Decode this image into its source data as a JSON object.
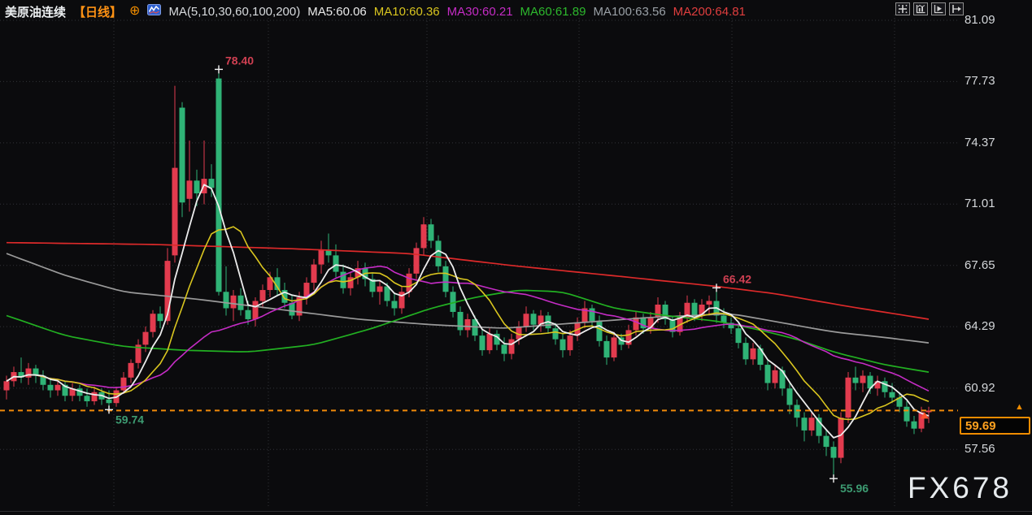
{
  "header": {
    "symbol": "美原油连续",
    "period": "【日线】",
    "plus_icon": "⊕",
    "ma_settings_label": "MA(5,10,30,60,100,200)",
    "ma_values": [
      {
        "label": "MA5:60.06",
        "color": "#ebebeb"
      },
      {
        "label": "MA10:60.36",
        "color": "#d9c51f"
      },
      {
        "label": "MA30:60.21",
        "color": "#c52cc5"
      },
      {
        "label": "MA60:61.89",
        "color": "#2db82d"
      },
      {
        "label": "MA100:63.56",
        "color": "#9aa0a6"
      },
      {
        "label": "MA200:64.81",
        "color": "#e03e3e"
      }
    ]
  },
  "toolbar": {
    "icons": [
      "move-crosshair",
      "fit-chart",
      "play-forward",
      "pan-right"
    ]
  },
  "price_box": {
    "value": "59.69",
    "arrow": "▲"
  },
  "watermark": "FX678",
  "chart_data": {
    "type": "candlestick",
    "title": "美原油连续 日线 (US Crude Oil Continuous, Daily)",
    "y_axis": {
      "side": "right",
      "ticks": [
        81.09,
        77.73,
        74.37,
        71.01,
        67.65,
        64.29,
        60.92,
        57.56
      ]
    },
    "current_price": 59.69,
    "up_color": "#e23b4e",
    "down_color": "#2fb376",
    "grid_color": "#323338",
    "dashed_line_color": "#f0890a",
    "annotations": [
      {
        "type": "high",
        "index": 29,
        "price": 78.4,
        "label": "78.40",
        "color": "#d04052"
      },
      {
        "type": "low",
        "index": 14,
        "price": 59.74,
        "label": "59.74",
        "color": "#3d9c72"
      },
      {
        "type": "high",
        "index": 97,
        "price": 66.42,
        "label": "66.42",
        "color": "#d04052"
      },
      {
        "type": "low",
        "index": 113,
        "price": 55.96,
        "label": "55.96",
        "color": "#3d9c72"
      }
    ],
    "ma_computed": [
      {
        "name": "MA5",
        "period": 5,
        "color": "#ececec"
      },
      {
        "name": "MA10",
        "period": 10,
        "color": "#d9c51f"
      },
      {
        "name": "MA30",
        "period": 30,
        "color": "#c52cc5"
      }
    ],
    "ma_paths": [
      {
        "name": "MA60",
        "color": "#22b022",
        "points": [
          [
            0,
            64.9
          ],
          [
            8,
            63.8
          ],
          [
            16,
            63.2
          ],
          [
            24,
            63.0
          ],
          [
            33,
            62.9
          ],
          [
            42,
            63.3
          ],
          [
            50,
            64.2
          ],
          [
            58,
            65.3
          ],
          [
            64,
            65.9
          ],
          [
            70,
            66.3
          ],
          [
            76,
            66.2
          ],
          [
            83,
            65.3
          ],
          [
            90,
            64.9
          ],
          [
            97,
            64.6
          ],
          [
            103,
            64.1
          ],
          [
            108,
            63.6
          ],
          [
            113,
            62.9
          ],
          [
            120,
            62.2
          ],
          [
            126,
            61.8
          ]
        ]
      },
      {
        "name": "MA100",
        "color": "#9a9a9a",
        "points": [
          [
            0,
            68.3
          ],
          [
            8,
            67.1
          ],
          [
            16,
            66.2
          ],
          [
            26,
            65.8
          ],
          [
            36,
            65.3
          ],
          [
            48,
            64.7
          ],
          [
            58,
            64.4
          ],
          [
            68,
            64.2
          ],
          [
            78,
            64.5
          ],
          [
            88,
            64.8
          ],
          [
            99,
            65.0
          ],
          [
            106,
            64.5
          ],
          [
            113,
            64.0
          ],
          [
            120,
            63.7
          ],
          [
            126,
            63.4
          ]
        ]
      },
      {
        "name": "MA200",
        "color": "#dd2a2a",
        "points": [
          [
            0,
            68.9
          ],
          [
            20,
            68.8
          ],
          [
            40,
            68.55
          ],
          [
            55,
            68.3
          ],
          [
            70,
            67.6
          ],
          [
            85,
            67.0
          ],
          [
            97,
            66.5
          ],
          [
            105,
            66.1
          ],
          [
            115,
            65.4
          ],
          [
            126,
            64.7
          ]
        ]
      }
    ],
    "candles": [
      [
        60.8,
        61.6,
        60.3,
        61.3
      ],
      [
        61.3,
        62.1,
        61.0,
        61.8
      ],
      [
        61.8,
        62.6,
        61.2,
        61.5
      ],
      [
        61.5,
        62.3,
        61.1,
        62.0
      ],
      [
        62.0,
        62.2,
        61.2,
        61.6
      ],
      [
        61.6,
        61.9,
        60.8,
        61.1
      ],
      [
        61.1,
        61.5,
        60.4,
        60.8
      ],
      [
        60.8,
        61.4,
        60.5,
        61.1
      ],
      [
        61.1,
        61.3,
        60.2,
        60.5
      ],
      [
        60.5,
        61.2,
        60.2,
        60.9
      ],
      [
        60.9,
        61.1,
        60.2,
        60.5
      ],
      [
        60.5,
        60.9,
        59.9,
        60.2
      ],
      [
        60.2,
        61.0,
        60.0,
        60.7
      ],
      [
        60.7,
        60.9,
        60.0,
        60.3
      ],
      [
        60.3,
        60.8,
        59.74,
        60.1
      ],
      [
        60.1,
        61.0,
        59.9,
        60.8
      ],
      [
        60.8,
        61.8,
        60.6,
        61.5
      ],
      [
        61.5,
        62.5,
        61.2,
        62.3
      ],
      [
        62.3,
        63.6,
        62.0,
        63.3
      ],
      [
        63.3,
        64.3,
        62.9,
        64.0
      ],
      [
        64.0,
        65.2,
        63.7,
        65.0
      ],
      [
        65.0,
        65.4,
        64.2,
        64.6
      ],
      [
        64.6,
        68.6,
        64.4,
        67.9
      ],
      [
        68.2,
        77.5,
        67.8,
        73.0
      ],
      [
        76.3,
        76.6,
        70.3,
        71.1
      ],
      [
        71.3,
        74.5,
        70.6,
        72.3
      ],
      [
        72.3,
        72.9,
        70.9,
        71.6
      ],
      [
        71.6,
        74.5,
        71.0,
        72.4
      ],
      [
        72.4,
        73.2,
        71.4,
        71.9
      ],
      [
        77.9,
        78.4,
        66.0,
        66.2
      ],
      [
        66.2,
        67.6,
        64.9,
        65.3
      ],
      [
        65.3,
        66.3,
        64.6,
        66.0
      ],
      [
        66.0,
        66.4,
        64.9,
        65.2
      ],
      [
        65.2,
        65.7,
        64.4,
        64.7
      ],
      [
        64.7,
        65.9,
        64.3,
        65.7
      ],
      [
        65.7,
        66.6,
        65.3,
        66.3
      ],
      [
        66.3,
        67.3,
        65.9,
        67.0
      ],
      [
        67.0,
        67.5,
        66.0,
        66.3
      ],
      [
        66.3,
        66.7,
        65.3,
        65.6
      ],
      [
        65.6,
        66.0,
        64.7,
        64.9
      ],
      [
        64.9,
        66.2,
        64.6,
        65.9
      ],
      [
        65.9,
        67.0,
        65.5,
        66.7
      ],
      [
        66.7,
        68.0,
        66.3,
        67.7
      ],
      [
        67.7,
        69.0,
        67.2,
        68.5
      ],
      [
        68.5,
        69.4,
        67.8,
        68.2
      ],
      [
        68.2,
        68.8,
        67.0,
        67.3
      ],
      [
        67.3,
        67.7,
        66.1,
        66.4
      ],
      [
        66.4,
        67.3,
        66.0,
        67.0
      ],
      [
        67.0,
        67.9,
        66.6,
        67.5
      ],
      [
        67.5,
        67.8,
        66.5,
        66.9
      ],
      [
        66.9,
        67.2,
        65.9,
        66.2
      ],
      [
        66.2,
        66.8,
        65.5,
        66.5
      ],
      [
        66.5,
        66.7,
        65.4,
        65.7
      ],
      [
        65.7,
        66.1,
        64.9,
        65.3
      ],
      [
        65.3,
        66.5,
        65.0,
        66.2
      ],
      [
        66.2,
        67.5,
        65.9,
        67.2
      ],
      [
        67.2,
        68.9,
        66.9,
        68.6
      ],
      [
        68.6,
        70.3,
        68.2,
        69.9
      ],
      [
        69.9,
        70.2,
        68.6,
        69.0
      ],
      [
        69.0,
        69.3,
        67.3,
        67.6
      ],
      [
        67.6,
        67.9,
        65.9,
        66.2
      ],
      [
        66.2,
        66.5,
        64.8,
        65.1
      ],
      [
        65.1,
        65.4,
        63.8,
        64.1
      ],
      [
        64.1,
        65.0,
        63.7,
        64.7
      ],
      [
        64.7,
        64.9,
        63.5,
        63.8
      ],
      [
        63.8,
        64.1,
        62.7,
        63.0
      ],
      [
        63.0,
        64.2,
        62.8,
        63.9
      ],
      [
        63.9,
        64.1,
        63.0,
        63.3
      ],
      [
        63.3,
        63.7,
        62.4,
        62.8
      ],
      [
        62.8,
        63.9,
        62.5,
        63.6
      ],
      [
        63.6,
        64.6,
        63.3,
        64.3
      ],
      [
        64.3,
        65.4,
        64.0,
        65.0
      ],
      [
        65.0,
        65.2,
        64.1,
        64.4
      ],
      [
        64.4,
        65.2,
        64.0,
        64.9
      ],
      [
        64.9,
        65.1,
        63.9,
        64.2
      ],
      [
        64.2,
        64.5,
        63.3,
        63.6
      ],
      [
        63.6,
        63.9,
        62.6,
        63.0
      ],
      [
        63.0,
        64.1,
        62.7,
        63.8
      ],
      [
        63.8,
        64.8,
        63.5,
        64.5
      ],
      [
        64.5,
        65.7,
        64.2,
        65.3
      ],
      [
        65.3,
        65.5,
        64.3,
        64.6
      ],
      [
        64.6,
        64.9,
        63.2,
        63.5
      ],
      [
        63.5,
        63.8,
        62.2,
        62.6
      ],
      [
        62.6,
        64.0,
        62.4,
        63.7
      ],
      [
        63.7,
        63.9,
        63.0,
        63.3
      ],
      [
        63.3,
        64.4,
        63.1,
        64.1
      ],
      [
        64.1,
        65.1,
        63.8,
        64.8
      ],
      [
        64.8,
        65.0,
        63.9,
        64.2
      ],
      [
        64.2,
        65.1,
        63.9,
        64.8
      ],
      [
        64.8,
        65.9,
        64.5,
        65.5
      ],
      [
        65.5,
        65.7,
        64.4,
        64.7
      ],
      [
        64.7,
        64.9,
        63.7,
        64.0
      ],
      [
        64.0,
        65.1,
        63.8,
        64.8
      ],
      [
        64.8,
        66.0,
        64.5,
        65.6
      ],
      [
        65.6,
        65.8,
        64.6,
        64.9
      ],
      [
        64.9,
        65.8,
        64.6,
        65.5
      ],
      [
        65.5,
        66.0,
        64.9,
        65.7
      ],
      [
        65.7,
        66.42,
        64.5,
        64.9
      ],
      [
        64.9,
        65.3,
        64.2,
        64.5
      ],
      [
        64.5,
        64.8,
        63.9,
        64.2
      ],
      [
        64.2,
        64.5,
        63.1,
        63.4
      ],
      [
        63.4,
        63.7,
        62.2,
        62.5
      ],
      [
        62.5,
        63.4,
        62.2,
        63.1
      ],
      [
        63.1,
        63.3,
        61.9,
        62.2
      ],
      [
        62.2,
        62.5,
        60.8,
        61.2
      ],
      [
        61.2,
        62.2,
        60.9,
        61.9
      ],
      [
        61.9,
        62.1,
        60.5,
        60.9
      ],
      [
        60.9,
        61.2,
        59.5,
        60.0
      ],
      [
        60.0,
        60.3,
        58.8,
        59.3
      ],
      [
        59.3,
        59.6,
        58.0,
        58.6
      ],
      [
        58.6,
        59.6,
        58.3,
        59.3
      ],
      [
        59.3,
        59.5,
        57.9,
        58.3
      ],
      [
        58.3,
        58.6,
        57.2,
        57.7
      ],
      [
        57.7,
        58.0,
        55.96,
        57.1
      ],
      [
        57.1,
        59.6,
        56.8,
        59.3
      ],
      [
        59.3,
        61.8,
        59.0,
        61.5
      ],
      [
        61.5,
        62.1,
        60.8,
        61.2
      ],
      [
        61.2,
        61.9,
        60.7,
        61.6
      ],
      [
        61.6,
        61.8,
        60.6,
        60.9
      ],
      [
        60.9,
        61.6,
        60.5,
        61.3
      ],
      [
        61.3,
        61.5,
        60.4,
        60.7
      ],
      [
        60.7,
        61.2,
        60.1,
        60.4
      ],
      [
        60.4,
        60.7,
        59.6,
        59.9
      ],
      [
        59.9,
        60.2,
        58.8,
        59.1
      ],
      [
        59.1,
        59.4,
        58.4,
        58.7
      ],
      [
        58.7,
        59.9,
        58.5,
        59.6
      ],
      [
        59.6,
        59.9,
        59.0,
        59.69
      ]
    ]
  }
}
